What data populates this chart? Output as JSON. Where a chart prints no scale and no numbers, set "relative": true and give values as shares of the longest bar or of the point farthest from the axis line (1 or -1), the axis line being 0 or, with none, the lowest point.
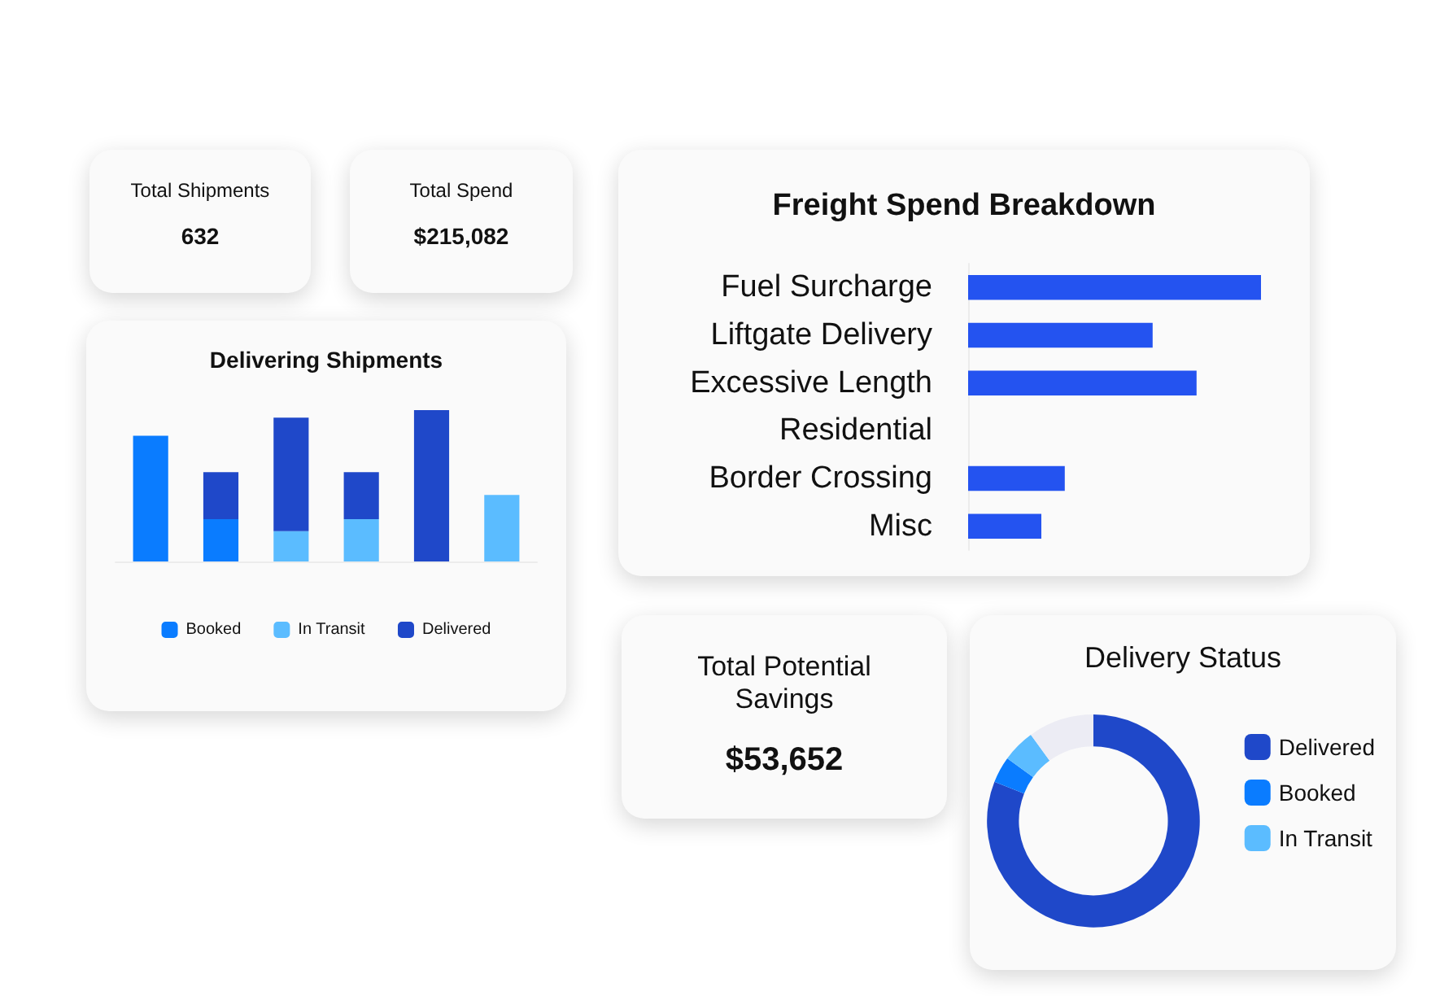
{
  "chart_data": [
    {
      "type": "other",
      "title": "Total Shipments",
      "annotations": [
        "632"
      ]
    },
    {
      "type": "other",
      "title": "Total Spend",
      "annotations": [
        "$215,082"
      ]
    },
    {
      "type": "bar",
      "title": "Freight Spend Breakdown",
      "orientation": "horizontal",
      "relative": true,
      "categories": [
        "Fuel Surcharge",
        "Liftgate Delivery",
        "Excessive Length",
        "Residential",
        "Border Crossing",
        "Misc"
      ],
      "values": [
        1,
        0.63,
        0.78,
        null,
        0.33,
        0.25
      ],
      "color": "#2453f0"
    },
    {
      "type": "bar",
      "title": "Delivering Shipments",
      "stacked": true,
      "relative": true,
      "legend": "bottom",
      "categories": [
        null,
        null,
        null,
        null,
        null,
        null
      ],
      "series": [
        {
          "name": "Booked",
          "color": "#0a7cff",
          "values": [
            0.83,
            0.28,
            0,
            0,
            0,
            0
          ]
        },
        {
          "name": "In Transit",
          "color": "#5bbcff",
          "values": [
            0,
            0,
            0.2,
            0.28,
            0,
            0.44
          ]
        },
        {
          "name": "Delivered",
          "color": "#1f48c9",
          "values": [
            0,
            0.31,
            0.75,
            0.31,
            1,
            0
          ]
        }
      ]
    },
    {
      "type": "other",
      "title": "Total Potential Savings",
      "annotations": [
        "$53,652"
      ]
    },
    {
      "type": "donut",
      "title": "Delivery Status",
      "legend": "right",
      "categories": [
        "Delivered",
        "Booked",
        "In Transit",
        null
      ],
      "values": [
        81,
        4,
        5,
        10
      ],
      "colors": [
        "#1f48c9",
        "#0a7cff",
        "#5bbcff",
        "#ececf4"
      ]
    }
  ]
}
